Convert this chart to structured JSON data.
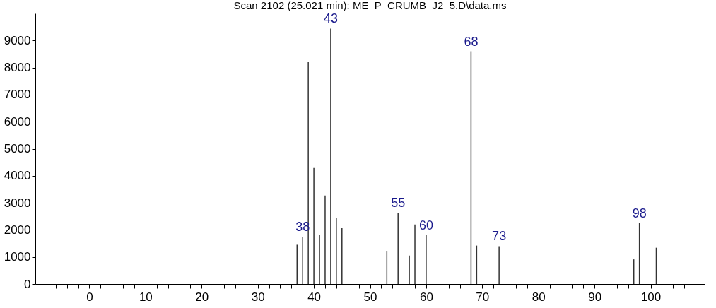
{
  "chart_data": {
    "type": "bar",
    "title": "Scan 2102 (25.021 min): ME_P_CRUMB_J2_5.D\\data.ms",
    "x": [
      37,
      38,
      39,
      40,
      41,
      42,
      43,
      44,
      45,
      53,
      55,
      57,
      58,
      60,
      68,
      69,
      73,
      97,
      98,
      101
    ],
    "series": [
      {
        "color": "#333333",
        "values": [
          1450,
          1740,
          8200,
          4290,
          1800,
          3270,
          9440,
          2440,
          2060,
          1200,
          2630,
          1050,
          2200,
          1800,
          8600,
          1420,
          1400,
          910,
          2250,
          1340
        ]
      }
    ],
    "xlim": [
      -9,
      109
    ],
    "ylim": [
      0,
      10000
    ],
    "xticks": [
      {
        "value": -8,
        "label": null
      },
      {
        "value": -6,
        "label": null
      },
      {
        "value": -4,
        "label": null
      },
      {
        "value": -2,
        "label": null
      },
      0,
      {
        "value": 2,
        "label": null
      },
      {
        "value": 4,
        "label": null
      },
      {
        "value": 6,
        "label": null
      },
      {
        "value": 8,
        "label": null
      },
      10,
      {
        "value": 12,
        "label": null
      },
      {
        "value": 14,
        "label": null
      },
      {
        "value": 16,
        "label": null
      },
      {
        "value": 18,
        "label": null
      },
      20,
      {
        "value": 22,
        "label": null
      },
      {
        "value": 24,
        "label": null
      },
      {
        "value": 26,
        "label": null
      },
      {
        "value": 28,
        "label": null
      },
      30,
      {
        "value": 32,
        "label": null
      },
      {
        "value": 34,
        "label": null
      },
      {
        "value": 36,
        "label": null
      },
      {
        "value": 38,
        "label": null
      },
      40,
      {
        "value": 42,
        "label": null
      },
      {
        "value": 44,
        "label": null
      },
      {
        "value": 46,
        "label": null
      },
      {
        "value": 48,
        "label": null
      },
      50,
      {
        "value": 52,
        "label": null
      },
      {
        "value": 54,
        "label": null
      },
      {
        "value": 56,
        "label": null
      },
      {
        "value": 58,
        "label": null
      },
      60,
      {
        "value": 62,
        "label": null
      },
      {
        "value": 64,
        "label": null
      },
      {
        "value": 66,
        "label": null
      },
      {
        "value": 68,
        "label": null
      },
      70,
      {
        "value": 72,
        "label": null
      },
      {
        "value": 74,
        "label": null
      },
      {
        "value": 76,
        "label": null
      },
      {
        "value": 78,
        "label": null
      },
      80,
      {
        "value": 82,
        "label": null
      },
      {
        "value": 84,
        "label": null
      },
      {
        "value": 86,
        "label": null
      },
      {
        "value": 88,
        "label": null
      },
      90,
      {
        "value": 92,
        "label": null
      },
      {
        "value": 94,
        "label": null
      },
      {
        "value": 96,
        "label": null
      },
      {
        "value": 98,
        "label": null
      },
      100,
      {
        "value": 102,
        "label": null
      },
      {
        "value": 104,
        "label": null
      },
      {
        "value": 106,
        "label": null
      },
      {
        "value": 108,
        "label": null
      }
    ],
    "yticks": [
      0,
      1000,
      2000,
      3000,
      4000,
      5000,
      6000,
      7000,
      8000,
      9000
    ],
    "grid": false,
    "annotations": [
      {
        "text": "38",
        "x": 38,
        "y": 1740
      },
      {
        "text": "43",
        "x": 43,
        "y": 9440
      },
      {
        "text": "55",
        "x": 55,
        "y": 2630
      },
      {
        "text": "60",
        "x": 60,
        "y": 1800
      },
      {
        "text": "68",
        "x": 68,
        "y": 8600
      },
      {
        "text": "73",
        "x": 73,
        "y": 1400
      },
      {
        "text": "98",
        "x": 98,
        "y": 2250
      }
    ]
  }
}
